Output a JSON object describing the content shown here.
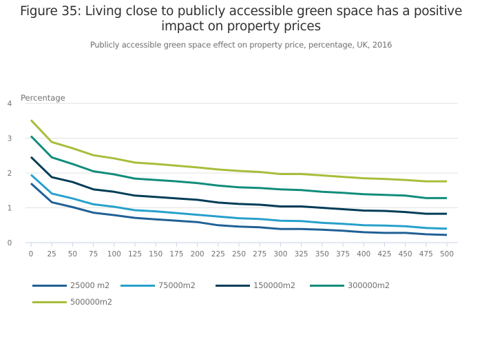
{
  "header": {
    "title_line1": "Figure 35: Living close to publicly accessible green space has a positive",
    "title_line2": "impact on property prices",
    "subtitle": "Publicly accessible green space effect on property price, percentage, UK, 2016"
  },
  "chart_data": {
    "type": "line",
    "title": "Figure 35: Living close to publicly accessible green space has a positive impact on property prices",
    "subtitle": "Publicly accessible green space effect on property price, percentage, UK, 2016",
    "xlabel": "",
    "ylabel": "Percentage",
    "x": [
      0,
      25,
      50,
      75,
      100,
      125,
      150,
      175,
      200,
      225,
      250,
      275,
      300,
      325,
      350,
      375,
      400,
      425,
      450,
      475,
      500
    ],
    "x_tick_labels": [
      "0",
      "25",
      "50",
      "75",
      "100",
      "125",
      "150",
      "175",
      "200",
      "225",
      "250",
      "275",
      "300",
      "325",
      "350",
      "375",
      "400",
      "425",
      "450",
      "475",
      "500"
    ],
    "y_tick_labels": [
      "0",
      "1",
      "2",
      "3",
      "4"
    ],
    "y_ticks": [
      0,
      1,
      2,
      3,
      4
    ],
    "ylim": [
      0,
      4
    ],
    "xlim": [
      0,
      500
    ],
    "grid": true,
    "legend_position": "bottom",
    "series": [
      {
        "name": "25000 m2",
        "color": "#206095",
        "values": [
          1.7,
          1.16,
          1.02,
          0.86,
          0.79,
          0.71,
          0.67,
          0.63,
          0.59,
          0.5,
          0.46,
          0.44,
          0.39,
          0.39,
          0.37,
          0.34,
          0.3,
          0.28,
          0.28,
          0.24,
          0.22
        ]
      },
      {
        "name": "75000m2",
        "color": "#27a0cc",
        "values": [
          1.95,
          1.41,
          1.27,
          1.1,
          1.03,
          0.93,
          0.9,
          0.85,
          0.8,
          0.75,
          0.7,
          0.68,
          0.63,
          0.62,
          0.57,
          0.54,
          0.5,
          0.49,
          0.47,
          0.42,
          0.4
        ]
      },
      {
        "name": "150000m2",
        "color": "#003c57",
        "values": [
          2.46,
          1.88,
          1.74,
          1.53,
          1.46,
          1.35,
          1.31,
          1.27,
          1.23,
          1.15,
          1.11,
          1.09,
          1.04,
          1.04,
          1.0,
          0.96,
          0.92,
          0.91,
          0.88,
          0.83,
          0.83
        ]
      },
      {
        "name": "300000m2",
        "color": "#118c7b",
        "values": [
          3.06,
          2.45,
          2.26,
          2.05,
          1.96,
          1.84,
          1.8,
          1.76,
          1.71,
          1.64,
          1.59,
          1.57,
          1.53,
          1.51,
          1.46,
          1.43,
          1.39,
          1.37,
          1.35,
          1.28,
          1.28
        ]
      },
      {
        "name": "500000m2",
        "color": "#a8bd3a",
        "values": [
          3.52,
          2.89,
          2.71,
          2.51,
          2.42,
          2.3,
          2.26,
          2.21,
          2.16,
          2.1,
          2.06,
          2.03,
          1.97,
          1.97,
          1.93,
          1.89,
          1.85,
          1.83,
          1.8,
          1.76,
          1.76
        ]
      }
    ]
  },
  "colors": {
    "gridline": "#e0e0e0",
    "axis": "#c6d3e6",
    "text": "#707071",
    "title": "#323132"
  }
}
